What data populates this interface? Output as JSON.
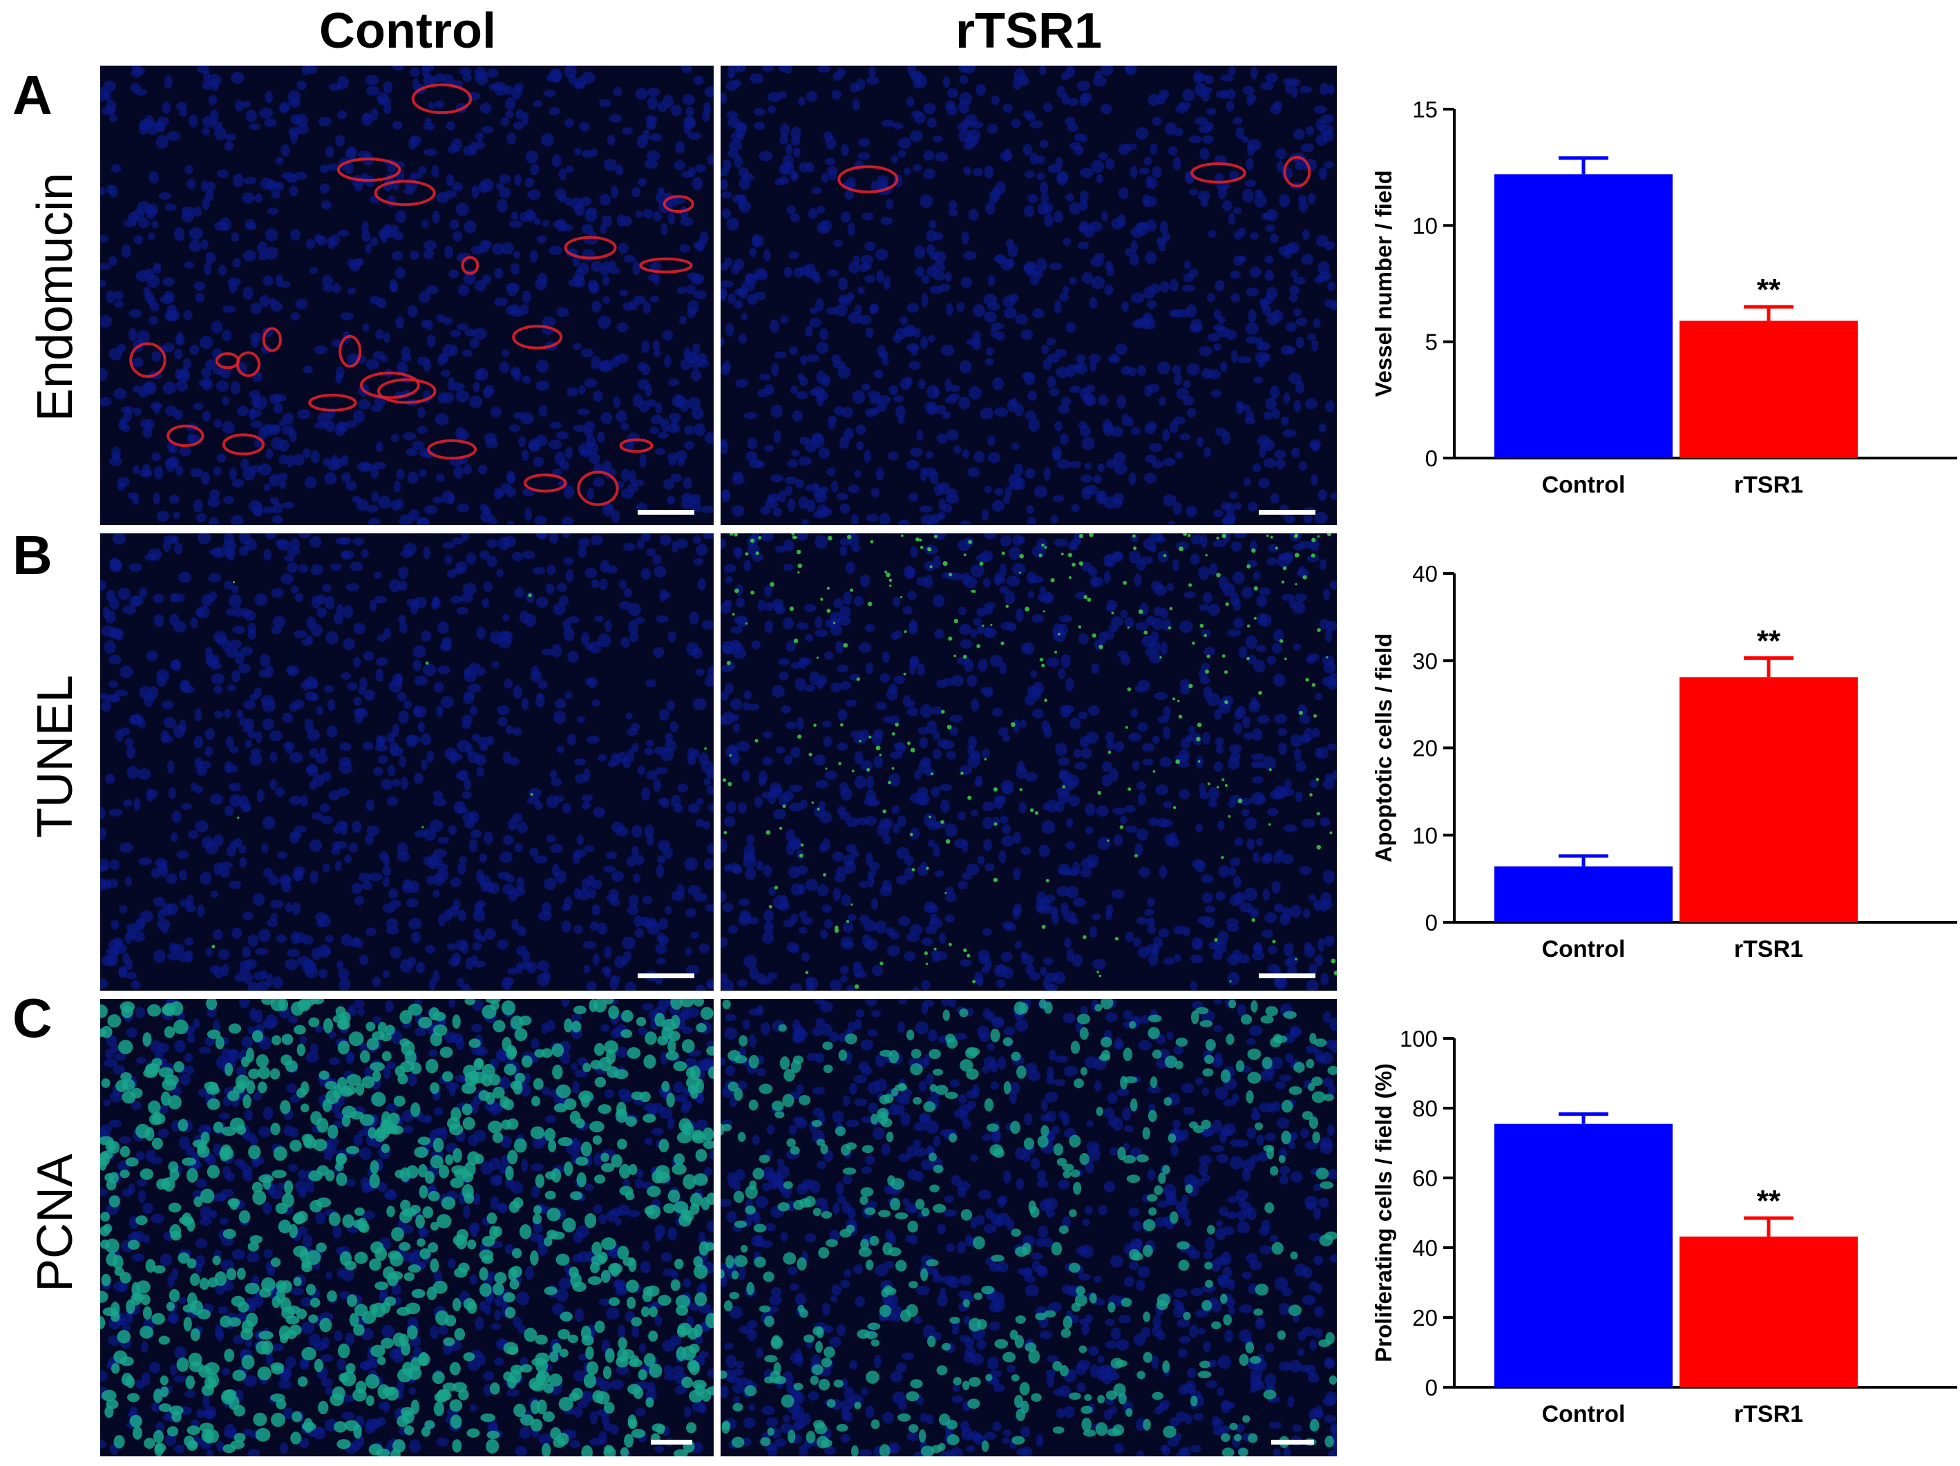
{
  "column_headers": [
    "Control",
    "rTSR1"
  ],
  "panels": [
    {
      "letter": "A",
      "stain": "Endomucin"
    },
    {
      "letter": "B",
      "stain": "TUNEL"
    },
    {
      "letter": "C",
      "stain": "PCNA"
    }
  ],
  "colors": {
    "control_bar": "#0000ff",
    "rtsr1_bar": "#ff0000",
    "nuclei": "#0c1a8a",
    "endomucin": "#e0202a",
    "tunel": "#3fcf4a",
    "pcna": "#1aa58c",
    "background": "#040824"
  },
  "chart_data": [
    {
      "type": "bar",
      "categories": [
        "Control",
        "rTSR1"
      ],
      "values": [
        12.2,
        5.9
      ],
      "errors": [
        0.7,
        0.6
      ],
      "significance": [
        "",
        "**"
      ],
      "ylabel": "Vessel number / field",
      "ylim": [
        0,
        15
      ],
      "yticks": [
        0,
        5,
        10,
        15
      ]
    },
    {
      "type": "bar",
      "categories": [
        "Control",
        "rTSR1"
      ],
      "values": [
        6.4,
        28.1
      ],
      "errors": [
        1.2,
        2.2
      ],
      "significance": [
        "",
        "**"
      ],
      "ylabel": "Apoptotic cells  / field",
      "ylim": [
        0,
        40
      ],
      "yticks": [
        0,
        10,
        20,
        30,
        40
      ]
    },
    {
      "type": "bar",
      "categories": [
        "Control",
        "rTSR1"
      ],
      "values": [
        75.5,
        43.2
      ],
      "errors": [
        2.8,
        5.3
      ],
      "significance": [
        "",
        "**"
      ],
      "ylabel": "Proliferating cells / field (%)",
      "ylim": [
        0,
        100
      ],
      "yticks": [
        0,
        20,
        40,
        60,
        80,
        100
      ]
    }
  ]
}
